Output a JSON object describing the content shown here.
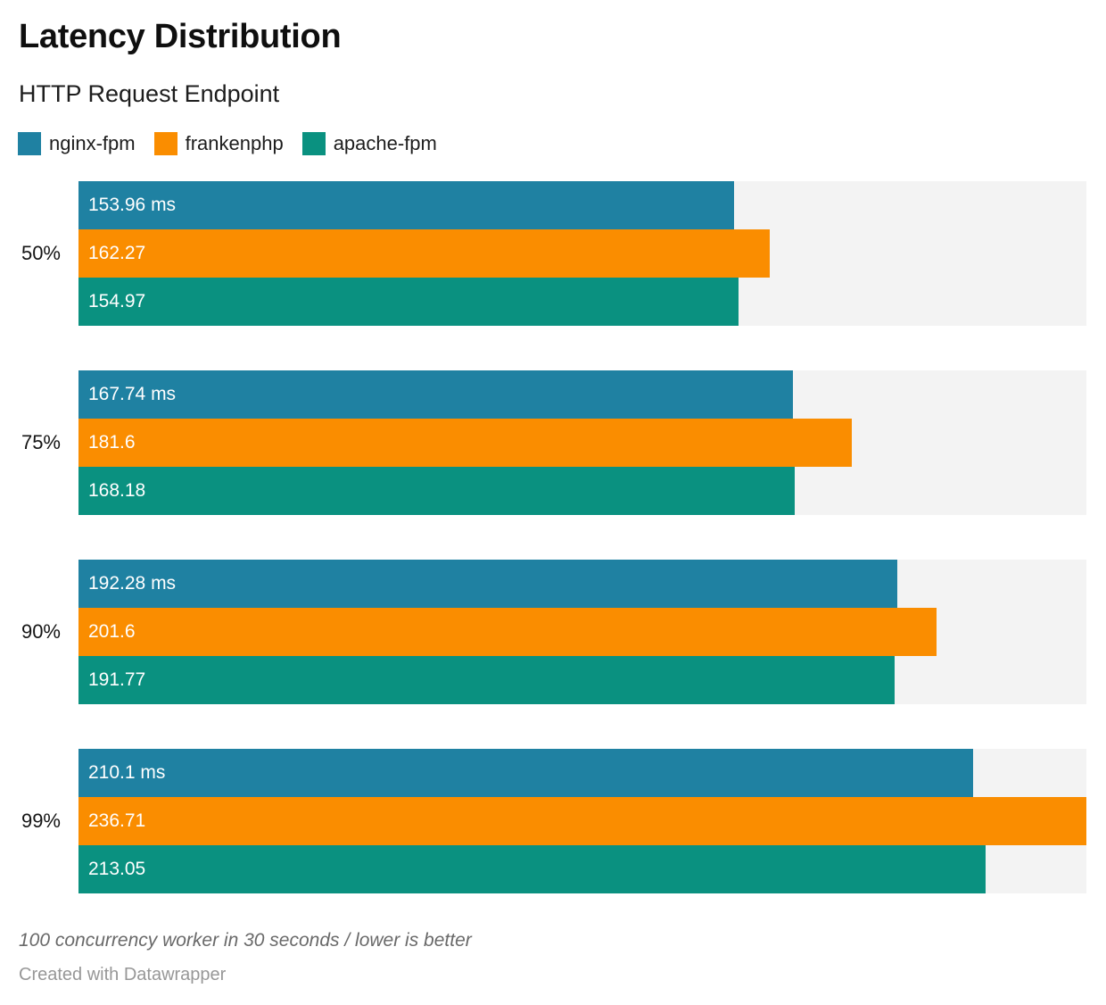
{
  "header": {
    "title": "Latency Distribution",
    "subtitle": "HTTP Request Endpoint"
  },
  "legend": [
    {
      "label": "nginx-fpm",
      "color": "#1f81a2"
    },
    {
      "label": "frankenphp",
      "color": "#fa8d00"
    },
    {
      "label": "apache-fpm",
      "color": "#0a9180"
    }
  ],
  "chart_data": {
    "type": "bar",
    "orientation": "horizontal",
    "title": "Latency Distribution",
    "subtitle": "HTTP Request Endpoint",
    "categories": [
      "50%",
      "75%",
      "90%",
      "99%"
    ],
    "series": [
      {
        "name": "nginx-fpm",
        "color": "#1f81a2",
        "values": [
          153.96,
          167.74,
          192.28,
          210.1
        ],
        "labels": [
          "153.96 ms",
          "167.74 ms",
          "192.28 ms",
          "210.1 ms"
        ]
      },
      {
        "name": "frankenphp",
        "color": "#fa8d00",
        "values": [
          162.27,
          181.6,
          201.6,
          236.71
        ],
        "labels": [
          "162.27",
          "181.6",
          "201.6",
          "236.71"
        ]
      },
      {
        "name": "apache-fpm",
        "color": "#0a9180",
        "values": [
          154.97,
          168.18,
          191.77,
          213.05
        ],
        "labels": [
          "154.97",
          "168.18",
          "191.77",
          "213.05"
        ]
      }
    ],
    "unit": "ms",
    "xlim": [
      0,
      236.71
    ],
    "grid": false,
    "track_color": "#f3f3f3",
    "value_labels": "inside-left",
    "legend_position": "top"
  },
  "footer": {
    "note": "100 concurrency worker in 30 seconds / lower is better",
    "attribution": "Created with Datawrapper"
  }
}
